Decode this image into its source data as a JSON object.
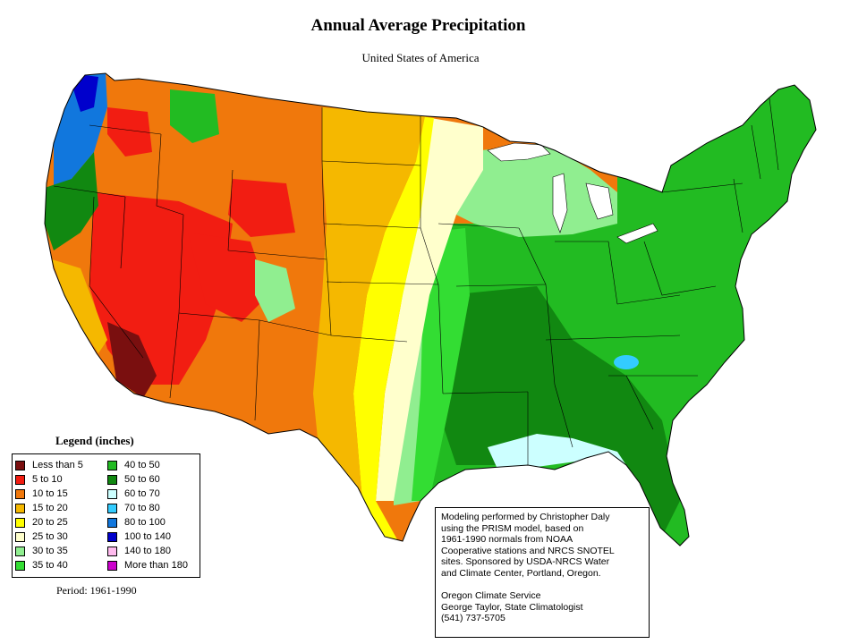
{
  "title": "Annual Average Precipitation",
  "subtitle": "United States of America",
  "legend": {
    "title": "Legend (inches)",
    "items": [
      {
        "label": "Less than 5",
        "color": "#7a0f0f"
      },
      {
        "label": "5 to 10",
        "color": "#f21d12"
      },
      {
        "label": "10 to 15",
        "color": "#f0780c"
      },
      {
        "label": "15 to 20",
        "color": "#f5b800"
      },
      {
        "label": "20 to 25",
        "color": "#ffff00"
      },
      {
        "label": "25 to 30",
        "color": "#ffffcc"
      },
      {
        "label": "30 to 35",
        "color": "#90ee90"
      },
      {
        "label": "35 to 40",
        "color": "#33dd33"
      },
      {
        "label": "40 to 50",
        "color": "#22bb22"
      },
      {
        "label": "50 to 60",
        "color": "#118811"
      },
      {
        "label": "60 to 70",
        "color": "#ccffff"
      },
      {
        "label": "70 to 80",
        "color": "#33ccff"
      },
      {
        "label": "80 to 100",
        "color": "#1177dd"
      },
      {
        "label": "100 to 140",
        "color": "#0000cc"
      },
      {
        "label": "140 to 180",
        "color": "#ffbbee"
      },
      {
        "label": "More than 180",
        "color": "#cc00cc"
      }
    ]
  },
  "period": "Period: 1961-1990",
  "credits": {
    "lines": [
      "Modeling performed by Christopher Daly",
      "using the PRISM model, based on",
      "1961-1990 normals from NOAA",
      "Cooperative stations and NRCS SNOTEL",
      "sites.  Sponsored by USDA-NRCS Water",
      "and Climate Center, Portland, Oregon."
    ],
    "org_lines": [
      "Oregon Climate Service",
      "George Taylor, State Climatologist",
      "(541) 737-5705"
    ]
  }
}
